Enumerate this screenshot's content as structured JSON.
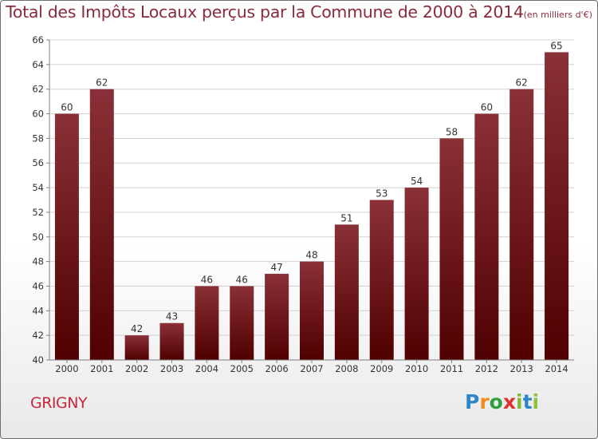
{
  "title": {
    "main": "Total des Impôts Locaux perçus par la Commune de 2000 à 2014",
    "unit": "(en milliers d'€)"
  },
  "commune": "GRIGNY",
  "brand": {
    "letters": [
      "P",
      "r",
      "o",
      "x",
      "i",
      "t",
      "i"
    ],
    "colors": [
      "#2e86c8",
      "#f28c1e",
      "#2e9e3e",
      "#e0302e",
      "#7fb83a",
      "#2e86c8",
      "#8fc23a"
    ]
  },
  "colors": {
    "bar_top": "#8a3038",
    "bar_bottom": "#500000",
    "grid": "#d0d0d0",
    "axis": "#808080",
    "text": "#333333"
  },
  "chart_data": {
    "type": "bar",
    "title": "Total des Impôts Locaux perçus par la Commune de 2000 à 2014",
    "xlabel": "",
    "ylabel": "",
    "categories": [
      "2000",
      "2001",
      "2002",
      "2003",
      "2004",
      "2005",
      "2006",
      "2007",
      "2008",
      "2009",
      "2010",
      "2011",
      "2012",
      "2013",
      "2014"
    ],
    "values": [
      60,
      62,
      42,
      43,
      46,
      46,
      47,
      48,
      51,
      53,
      54,
      58,
      60,
      62,
      65
    ],
    "ylim": [
      40,
      66
    ],
    "yticks": [
      40,
      42,
      44,
      46,
      48,
      50,
      52,
      54,
      56,
      58,
      60,
      62,
      64,
      66
    ],
    "grid": true
  }
}
